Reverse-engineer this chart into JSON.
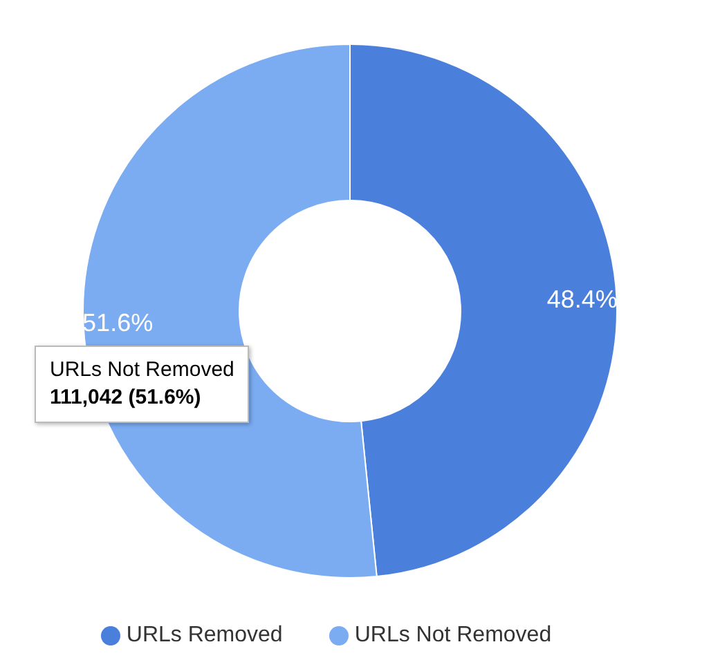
{
  "chart_data": {
    "type": "donut",
    "categories": [
      "URLs Removed",
      "URLs Not Removed"
    ],
    "values": [
      48.4,
      51.6
    ],
    "colors": [
      "#4a80dc",
      "#7bacf2"
    ],
    "value_labels": [
      "48.4%",
      "51.6%"
    ],
    "legend": "bottom",
    "annotations": [
      "URLs Not Removed",
      "111,042 (51.6%)"
    ]
  }
}
